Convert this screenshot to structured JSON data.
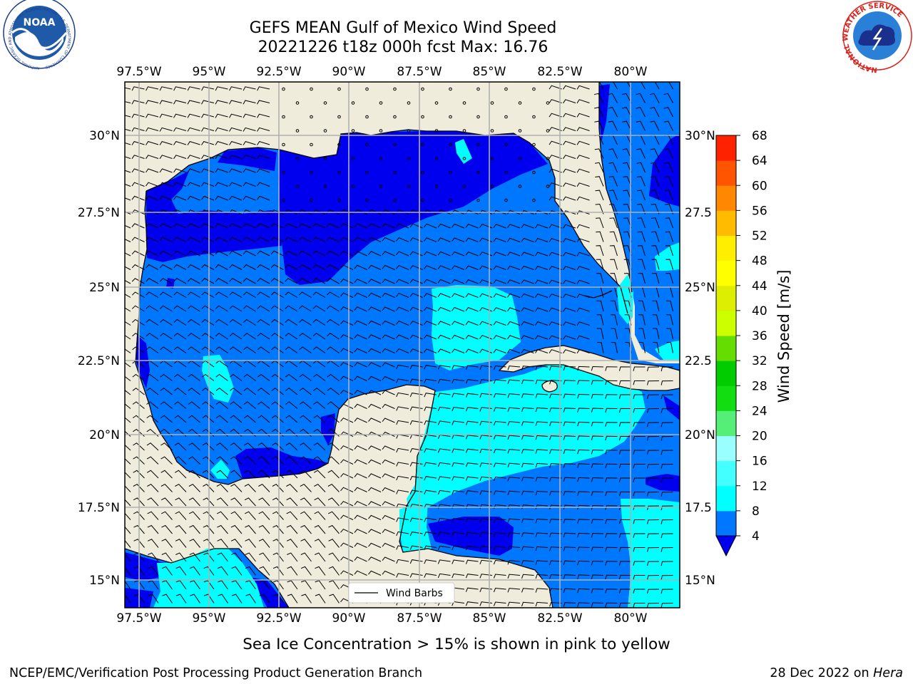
{
  "header": {
    "title_line1": "GEFS MEAN Gulf of Mexico Wind Speed",
    "title_line2": "20221226 t18z 000h fcst   Max: 16.76"
  },
  "logos": {
    "noaa_center": "NOAA",
    "noaa_ring": "NATIONAL OCEANIC AND ATMOSPHERIC ADMINISTRATION · U.S. DEPARTMENT OF COMMERCE",
    "nws_ring": "NATIONAL WEATHER SERVICE"
  },
  "map": {
    "lon_labels": [
      "97.5°W",
      "95°W",
      "92.5°W",
      "90°W",
      "87.5°W",
      "85°W",
      "82.5°W",
      "80°W"
    ],
    "lat_labels_left": [
      "30°N",
      "27.5°N",
      "25°N",
      "22.5°N",
      "20°N",
      "17.5°N",
      "15°N"
    ],
    "lat_labels_right": [
      "30°N",
      "27.5",
      "25°N",
      "22.5",
      "20°N",
      "17.5",
      "15°N"
    ],
    "legend_label": "Wind Barbs",
    "colors": {
      "land": "#efecdc",
      "grid": "#b0b0b0",
      "ocean_low": "#0000ee",
      "ocean_mid": "#0077ff",
      "ocean_high": "#00ffff"
    }
  },
  "colorbar": {
    "label": "Wind Speed [m/s]",
    "ticks": [
      "4",
      "8",
      "12",
      "16",
      "20",
      "24",
      "28",
      "32",
      "36",
      "40",
      "44",
      "48",
      "52",
      "56",
      "60",
      "64",
      "68"
    ],
    "colors": [
      "#0077ff",
      "#00ffff",
      "#44ffff",
      "#99ffff",
      "#55ee77",
      "#11dd11",
      "#00cc00",
      "#66dd00",
      "#ccff00",
      "#ddee00",
      "#ffff00",
      "#ffee00",
      "#ffbb00",
      "#ff8800",
      "#ff5500",
      "#ff2200"
    ],
    "extend_color": "#0000ee"
  },
  "subtitle": "Sea Ice Concentration > 15% is shown in pink to yellow",
  "footer": {
    "left": "NCEP/EMC/Verification Post Processing Product Generation Branch",
    "right_date": "28 Dec 2022 on ",
    "right_host": "Hera"
  }
}
